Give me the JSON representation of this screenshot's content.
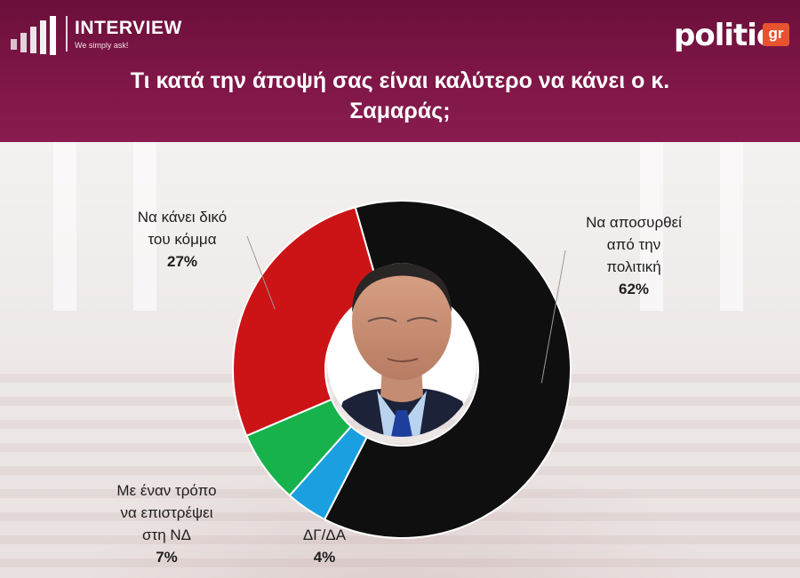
{
  "header": {
    "brand": "INTERVIEW",
    "tagline": "We simply ask!",
    "publisher_word": "politic",
    "publisher_suffix": "gr",
    "title_line1": "Τι κατά την άποψή σας είναι καλύτερο να κάνει ο κ.",
    "title_line2": "Σαμαράς;"
  },
  "colors": {
    "header": "#7b1545",
    "withdraw": "#0f0f0f",
    "own_party": "#cc1417",
    "return_nd": "#18b24d",
    "dk_na": "#1a9fe0"
  },
  "chart_data": {
    "type": "pie",
    "donut": true,
    "center_image": "portrait-photo",
    "title": "Τι κατά την άποψή σας είναι καλύτερο να κάνει ο κ. Σαμαράς;",
    "slices": [
      {
        "label_lines": [
          "Να αποσυρθεί",
          "από την",
          "πολιτική"
        ],
        "value": 62,
        "display": "62%",
        "color": "#0f0f0f"
      },
      {
        "label_lines": [
          "ΔΓ/ΔΑ"
        ],
        "value": 4,
        "display": "4%",
        "color": "#1a9fe0"
      },
      {
        "label_lines": [
          "Με έναν τρόπο",
          "να επιστρέψει",
          "στη ΝΔ"
        ],
        "value": 7,
        "display": "7%",
        "color": "#18b24d"
      },
      {
        "label_lines": [
          "Να κάνει δικό",
          "του κόμμα"
        ],
        "value": 27,
        "display": "27%",
        "color": "#cc1417"
      }
    ]
  }
}
